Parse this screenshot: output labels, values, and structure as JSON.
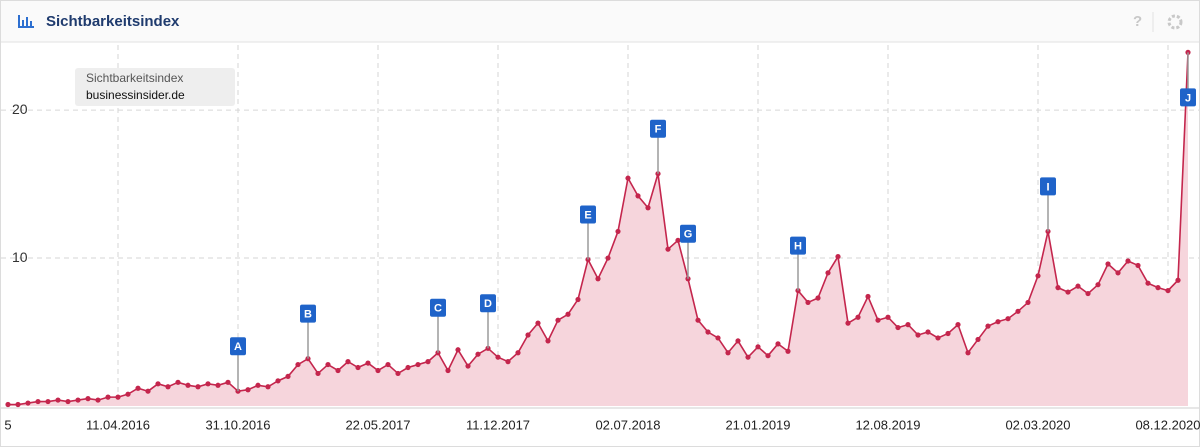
{
  "chart_data": {
    "type": "line",
    "title": "Sichtbarkeitsindex",
    "legend_title": "Sichtbarkeitsindex",
    "categories": [
      "5",
      null,
      null,
      null,
      null,
      null,
      null,
      null,
      null,
      null,
      null,
      "11.04.2016",
      null,
      null,
      null,
      null,
      null,
      null,
      null,
      null,
      null,
      null,
      null,
      "31.10.2016",
      null,
      null,
      null,
      null,
      null,
      null,
      null,
      null,
      null,
      null,
      null,
      null,
      null,
      "22.05.2017",
      null,
      null,
      null,
      null,
      null,
      null,
      null,
      null,
      null,
      null,
      null,
      "11.12.2017",
      null,
      null,
      null,
      null,
      null,
      null,
      null,
      null,
      null,
      null,
      null,
      null,
      "02.07.2018",
      null,
      null,
      null,
      null,
      null,
      null,
      null,
      null,
      null,
      null,
      null,
      null,
      "21.01.2019",
      null,
      null,
      null,
      null,
      null,
      null,
      null,
      null,
      null,
      null,
      null,
      null,
      "12.08.2019",
      null,
      null,
      null,
      null,
      null,
      null,
      null,
      null,
      null,
      null,
      null,
      null,
      null,
      null,
      "02.03.2020",
      null,
      null,
      null,
      null,
      null,
      null,
      null,
      null,
      null,
      null,
      null,
      null,
      "08.12.2020",
      null,
      null
    ],
    "series": [
      {
        "name": "businessinsider.de",
        "color": "#c4264d",
        "fill": "#f6d5dc",
        "values": [
          0.1,
          0.1,
          0.2,
          0.3,
          0.3,
          0.4,
          0.3,
          0.4,
          0.5,
          0.4,
          0.6,
          0.6,
          0.8,
          1.2,
          1.0,
          1.5,
          1.3,
          1.6,
          1.4,
          1.3,
          1.5,
          1.4,
          1.6,
          1.0,
          1.1,
          1.4,
          1.3,
          1.7,
          2.0,
          2.8,
          3.2,
          2.2,
          2.8,
          2.4,
          3.0,
          2.6,
          2.9,
          2.4,
          2.8,
          2.2,
          2.6,
          2.8,
          3.0,
          3.6,
          2.4,
          3.8,
          2.7,
          3.5,
          3.9,
          3.3,
          3.0,
          3.6,
          4.8,
          5.6,
          4.4,
          5.8,
          6.2,
          7.2,
          9.9,
          8.6,
          10.0,
          11.8,
          15.4,
          14.2,
          13.4,
          15.7,
          10.6,
          11.2,
          8.6,
          5.8,
          5.0,
          4.6,
          3.6,
          4.4,
          3.3,
          4.0,
          3.4,
          4.2,
          3.7,
          7.8,
          7.0,
          7.3,
          9.0,
          10.1,
          5.6,
          6.0,
          7.4,
          5.8,
          6.0,
          5.3,
          5.5,
          4.8,
          5.0,
          4.6,
          4.9,
          5.5,
          3.6,
          4.5,
          5.4,
          5.7,
          5.9,
          6.4,
          7.0,
          8.8,
          11.8,
          8.0,
          7.7,
          8.1,
          7.6,
          8.2,
          9.6,
          9.0,
          9.8,
          9.5,
          8.3,
          8.0,
          7.8,
          8.5,
          23.9
        ]
      }
    ],
    "annotations": [
      {
        "text": "A",
        "category": 23
      },
      {
        "text": "B",
        "category": 30
      },
      {
        "text": "C",
        "category": 43
      },
      {
        "text": "D",
        "category": 48
      },
      {
        "text": "E",
        "category": 58
      },
      {
        "text": "F",
        "category": 65
      },
      {
        "text": "G",
        "category": 68
      },
      {
        "text": "H",
        "category": 79
      },
      {
        "text": "I",
        "category": 104
      },
      {
        "text": "J",
        "category": 118
      }
    ],
    "ylim": [
      0,
      24.4
    ],
    "yticks": [
      10,
      20
    ],
    "grid": true
  }
}
